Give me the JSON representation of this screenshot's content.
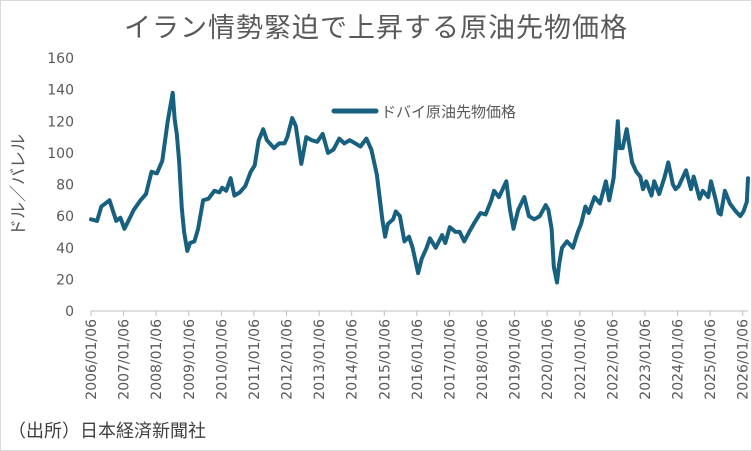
{
  "chart_data": {
    "type": "line",
    "title": "イラン情勢緊迫で上昇する原油先物価格",
    "xlabel": "",
    "ylabel": "ドル／バレル",
    "ylim": [
      0,
      160
    ],
    "yticks": [
      0,
      20,
      40,
      60,
      80,
      100,
      120,
      140,
      160
    ],
    "xlim": [
      "2006-01-06",
      "2026-03-06"
    ],
    "xticks": [
      "2006/01/06",
      "2007/01/06",
      "2008/01/06",
      "2009/01/06",
      "2010/01/06",
      "2011/01/06",
      "2012/01/06",
      "2013/01/06",
      "2014/01/06",
      "2015/01/06",
      "2016/01/06",
      "2017/01/06",
      "2018/01/06",
      "2019/01/06",
      "2020/01/06",
      "2021/01/06",
      "2022/01/06",
      "2023/01/06",
      "2024/01/06",
      "2025/01/06",
      "2026/01/06"
    ],
    "grid": false,
    "legend_position": "top-center",
    "series": [
      {
        "name": "ドバイ原油先物価格",
        "color": "#17607f",
        "points": [
          [
            "2006-01-06",
            58
          ],
          [
            "2006-03-15",
            57
          ],
          [
            "2006-05-01",
            66
          ],
          [
            "2006-08-01",
            70
          ],
          [
            "2006-10-15",
            57
          ],
          [
            "2006-12-01",
            59
          ],
          [
            "2007-01-15",
            52
          ],
          [
            "2007-03-01",
            57
          ],
          [
            "2007-05-01",
            64
          ],
          [
            "2007-07-15",
            70
          ],
          [
            "2007-09-15",
            74
          ],
          [
            "2007-11-15",
            88
          ],
          [
            "2008-01-15",
            87
          ],
          [
            "2008-03-15",
            95
          ],
          [
            "2008-05-15",
            120
          ],
          [
            "2008-07-10",
            138
          ],
          [
            "2008-08-01",
            121
          ],
          [
            "2008-08-25",
            112
          ],
          [
            "2008-09-20",
            95
          ],
          [
            "2008-10-20",
            65
          ],
          [
            "2008-11-15",
            50
          ],
          [
            "2008-12-20",
            38
          ],
          [
            "2009-01-20",
            43
          ],
          [
            "2009-03-10",
            44
          ],
          [
            "2009-04-20",
            52
          ],
          [
            "2009-06-15",
            70
          ],
          [
            "2009-08-15",
            71
          ],
          [
            "2009-10-20",
            76
          ],
          [
            "2009-12-15",
            75
          ],
          [
            "2010-01-15",
            78
          ],
          [
            "2010-03-01",
            76
          ],
          [
            "2010-04-20",
            84
          ],
          [
            "2010-06-01",
            73
          ],
          [
            "2010-08-01",
            75
          ],
          [
            "2010-10-01",
            79
          ],
          [
            "2010-12-01",
            88
          ],
          [
            "2011-01-15",
            92
          ],
          [
            "2011-03-01",
            108
          ],
          [
            "2011-04-20",
            115
          ],
          [
            "2011-06-01",
            108
          ],
          [
            "2011-08-20",
            103
          ],
          [
            "2011-10-15",
            106
          ],
          [
            "2011-12-15",
            106
          ],
          [
            "2012-01-15",
            110
          ],
          [
            "2012-03-10",
            122
          ],
          [
            "2012-04-20",
            117
          ],
          [
            "2012-06-20",
            93
          ],
          [
            "2012-08-15",
            110
          ],
          [
            "2012-10-15",
            108
          ],
          [
            "2012-12-15",
            107
          ],
          [
            "2013-02-15",
            112
          ],
          [
            "2013-04-15",
            100
          ],
          [
            "2013-06-15",
            102
          ],
          [
            "2013-08-20",
            109
          ],
          [
            "2013-10-15",
            106
          ],
          [
            "2013-12-15",
            108
          ],
          [
            "2014-02-15",
            106
          ],
          [
            "2014-04-15",
            104
          ],
          [
            "2014-06-20",
            109
          ],
          [
            "2014-08-15",
            102
          ],
          [
            "2014-10-15",
            86
          ],
          [
            "2014-12-15",
            58
          ],
          [
            "2015-01-15",
            47
          ],
          [
            "2015-02-15",
            55
          ],
          [
            "2015-04-15",
            58
          ],
          [
            "2015-05-15",
            63
          ],
          [
            "2015-06-30",
            60
          ],
          [
            "2015-08-20",
            44
          ],
          [
            "2015-10-10",
            47
          ],
          [
            "2015-11-20",
            40
          ],
          [
            "2016-01-20",
            24
          ],
          [
            "2016-03-01",
            33
          ],
          [
            "2016-04-25",
            40
          ],
          [
            "2016-06-01",
            46
          ],
          [
            "2016-08-05",
            40
          ],
          [
            "2016-10-15",
            48
          ],
          [
            "2016-11-20",
            43
          ],
          [
            "2017-01-10",
            53
          ],
          [
            "2017-03-15",
            50
          ],
          [
            "2017-05-01",
            50
          ],
          [
            "2017-06-20",
            44
          ],
          [
            "2017-08-15",
            50
          ],
          [
            "2017-10-15",
            56
          ],
          [
            "2017-12-20",
            62
          ],
          [
            "2018-02-15",
            61
          ],
          [
            "2018-04-20",
            70
          ],
          [
            "2018-05-20",
            76
          ],
          [
            "2018-07-15",
            72
          ],
          [
            "2018-10-05",
            82
          ],
          [
            "2018-11-15",
            64
          ],
          [
            "2018-12-25",
            52
          ],
          [
            "2019-02-15",
            64
          ],
          [
            "2019-04-25",
            72
          ],
          [
            "2019-06-15",
            60
          ],
          [
            "2019-08-15",
            58
          ],
          [
            "2019-10-15",
            60
          ],
          [
            "2019-12-20",
            67
          ],
          [
            "2020-01-20",
            64
          ],
          [
            "2020-02-25",
            52
          ],
          [
            "2020-03-20",
            28
          ],
          [
            "2020-04-25",
            18
          ],
          [
            "2020-05-20",
            30
          ],
          [
            "2020-06-20",
            40
          ],
          [
            "2020-08-15",
            44
          ],
          [
            "2020-10-20",
            40
          ],
          [
            "2020-12-15",
            50
          ],
          [
            "2021-01-20",
            55
          ],
          [
            "2021-03-10",
            66
          ],
          [
            "2021-04-15",
            62
          ],
          [
            "2021-06-20",
            72
          ],
          [
            "2021-08-20",
            68
          ],
          [
            "2021-10-25",
            82
          ],
          [
            "2021-12-01",
            70
          ],
          [
            "2022-01-20",
            84
          ],
          [
            "2022-03-08",
            120
          ],
          [
            "2022-03-25",
            103
          ],
          [
            "2022-05-01",
            103
          ],
          [
            "2022-06-15",
            115
          ],
          [
            "2022-08-15",
            94
          ],
          [
            "2022-10-01",
            88
          ],
          [
            "2022-11-15",
            85
          ],
          [
            "2022-12-15",
            77
          ],
          [
            "2023-01-20",
            82
          ],
          [
            "2023-03-20",
            73
          ],
          [
            "2023-04-20",
            82
          ],
          [
            "2023-06-15",
            74
          ],
          [
            "2023-08-15",
            85
          ],
          [
            "2023-09-25",
            94
          ],
          [
            "2023-11-15",
            80
          ],
          [
            "2023-12-15",
            77
          ],
          [
            "2024-01-20",
            79
          ],
          [
            "2024-04-10",
            89
          ],
          [
            "2024-06-05",
            77
          ],
          [
            "2024-07-05",
            85
          ],
          [
            "2024-09-10",
            71
          ],
          [
            "2024-10-15",
            76
          ],
          [
            "2024-12-15",
            72
          ],
          [
            "2025-01-15",
            82
          ],
          [
            "2025-03-10",
            70
          ],
          [
            "2025-04-10",
            62
          ],
          [
            "2025-05-05",
            61
          ],
          [
            "2025-06-20",
            76
          ],
          [
            "2025-08-15",
            68
          ],
          [
            "2025-10-20",
            63
          ],
          [
            "2025-12-10",
            60
          ],
          [
            "2026-01-15",
            63
          ],
          [
            "2026-02-20",
            69
          ],
          [
            "2026-03-06",
            84
          ]
        ]
      }
    ]
  },
  "source_note": "（出所）日本経済新聞社"
}
